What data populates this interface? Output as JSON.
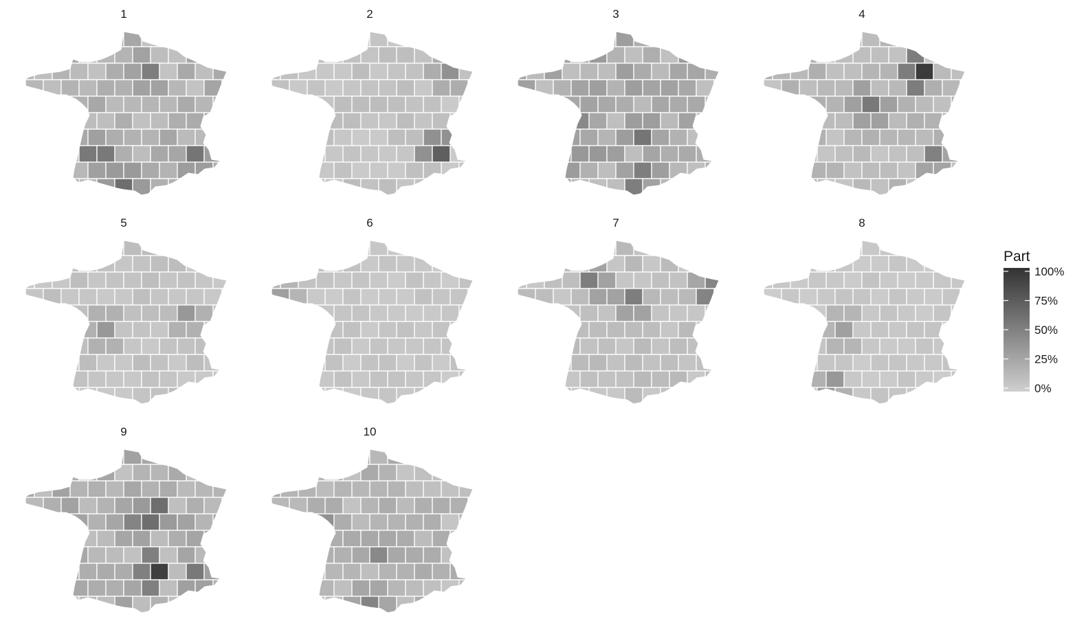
{
  "chart_data": {
    "type": "choropleth",
    "panels": [
      {
        "label": "1",
        "dark_regions": [
          {
            "region": "south-west coast",
            "value": 55
          },
          {
            "region": "Pyrenees centre",
            "value": 62
          },
          {
            "region": "south-east",
            "value": 58
          },
          {
            "region": "north-central",
            "value": 52
          }
        ],
        "base": 18
      },
      {
        "label": "2",
        "dark_regions": [
          {
            "region": "Alps",
            "value": 72
          },
          {
            "region": "north-east",
            "value": 40
          }
        ],
        "base": 8
      },
      {
        "label": "3",
        "dark_regions": [
          {
            "region": "Massif Central",
            "value": 58
          },
          {
            "region": "south-west coast",
            "value": 35
          },
          {
            "region": "Pyrenees east",
            "value": 52
          },
          {
            "region": "west coast",
            "value": 45
          }
        ],
        "base": 22
      },
      {
        "label": "4",
        "dark_regions": [
          {
            "region": "north-east (Meuse)",
            "value": 95
          },
          {
            "region": "centre",
            "value": 55
          },
          {
            "region": "south-east",
            "value": 50
          }
        ],
        "base": 14
      },
      {
        "label": "5",
        "dark_regions": [
          {
            "region": "west-central",
            "value": 35
          },
          {
            "region": "east",
            "value": 35
          }
        ],
        "base": 8
      },
      {
        "label": "6",
        "dark_regions": [
          {
            "region": "Brittany tip",
            "value": 30
          }
        ],
        "base": 6
      },
      {
        "label": "7",
        "dark_regions": [
          {
            "region": "Normandy",
            "value": 52
          },
          {
            "region": "centre north",
            "value": 52
          },
          {
            "region": "Alsace",
            "value": 48
          }
        ],
        "base": 10
      },
      {
        "label": "8",
        "dark_regions": [
          {
            "region": "west-central",
            "value": 30
          },
          {
            "region": "Pyrenees west",
            "value": 35
          }
        ],
        "base": 5
      },
      {
        "label": "9",
        "dark_regions": [
          {
            "region": "Massif Central south",
            "value": 92
          },
          {
            "region": "centre-east",
            "value": 62
          },
          {
            "region": "south-east",
            "value": 55
          },
          {
            "region": "centre",
            "value": 48
          }
        ],
        "base": 20
      },
      {
        "label": "10",
        "dark_regions": [
          {
            "region": "centre-south",
            "value": 45
          },
          {
            "region": "west",
            "value": 40
          },
          {
            "region": "Pyrenees centre",
            "value": 48
          }
        ],
        "base": 16
      }
    ],
    "legend": {
      "title": "Part",
      "ticks": [
        "100%",
        "75%",
        "50%",
        "25%",
        "0%"
      ],
      "values": [
        100,
        75,
        50,
        25,
        0
      ],
      "color_low": "#cfcfcf",
      "color_high": "#333333",
      "placement": "right"
    }
  }
}
